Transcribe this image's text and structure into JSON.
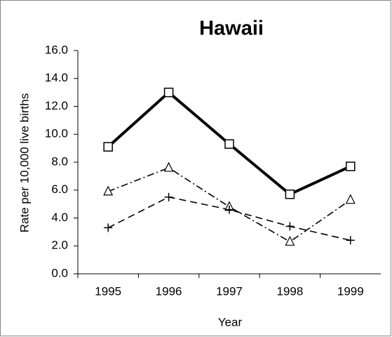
{
  "chart_data": {
    "type": "line",
    "title": "Hawaii",
    "xlabel": "Year",
    "ylabel": "Rate per 10,000 live births",
    "categories": [
      "1995",
      "1996",
      "1997",
      "1998",
      "1999"
    ],
    "series": [
      {
        "color": "#000000",
        "marker": "square",
        "dash": "solid",
        "values": [
          9.1,
          13.0,
          9.3,
          5.7,
          7.7
        ]
      },
      {
        "color": "#000000",
        "marker": "triangle",
        "dash": "dashdot",
        "values": [
          5.9,
          7.6,
          4.8,
          2.3,
          5.3
        ]
      },
      {
        "color": "#000000",
        "marker": "plus",
        "dash": "dash",
        "values": [
          3.3,
          5.5,
          4.6,
          3.4,
          2.4
        ]
      }
    ],
    "ylim": [
      0,
      16
    ],
    "yticks": [
      {
        "value": 0,
        "label": "0.0"
      },
      {
        "value": 2,
        "label": "2.0"
      },
      {
        "value": 4,
        "label": "4.0"
      },
      {
        "value": 6,
        "label": "6.0"
      },
      {
        "value": 8,
        "label": "8.0"
      },
      {
        "value": 10,
        "label": "10.0"
      },
      {
        "value": 12,
        "label": "12.0"
      },
      {
        "value": 14,
        "label": "14.0"
      },
      {
        "value": 16,
        "label": "16.0"
      }
    ],
    "grid": false
  }
}
